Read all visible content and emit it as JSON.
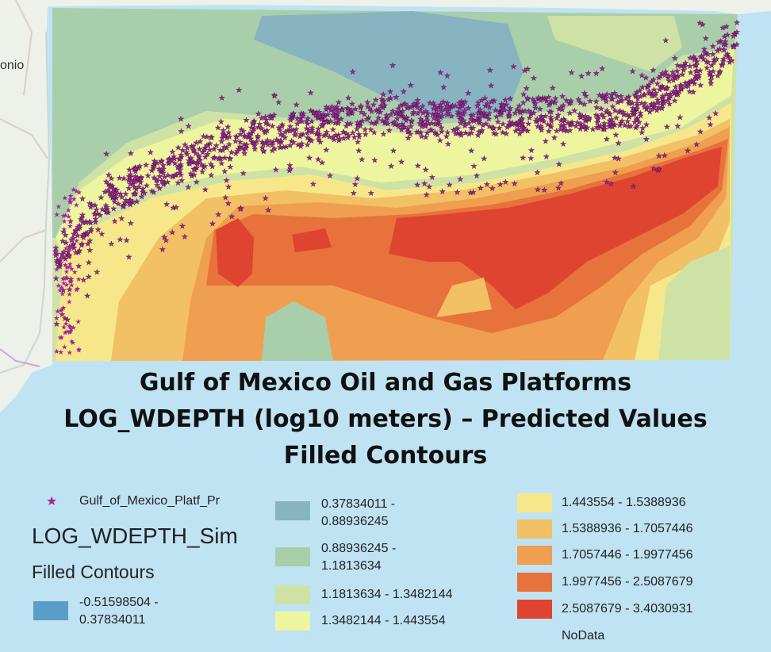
{
  "map": {
    "place_label": "onio",
    "basemap_land_color": "#eef0ea",
    "basemap_water_color": "#bfe3f3",
    "platform_marker_color": "#a0279b"
  },
  "title": {
    "line1": "Gulf of Mexico Oil and Gas Platforms",
    "line2": "LOG_WDEPTH (log10 meters) – Predicted Values",
    "line3": "Filled Contours"
  },
  "legend": {
    "point_layer_label": "Gulf_of_Mexico_Platf_Pr",
    "point_layer_icon": "star-icon",
    "layer_title": "LOG_WDEPTH_Sim",
    "subtitle": "Filled Contours",
    "classes": [
      {
        "line1": "-0.51598504 -",
        "line2": "0.37834011",
        "color": "#5b9dc9"
      },
      {
        "line1": "0.37834011 -",
        "line2": "0.88936245",
        "color": "#88b3c0"
      },
      {
        "line1": "0.88936245 -",
        "line2": "1.1813634",
        "color": "#a8cfaa"
      },
      {
        "line1": "1.1813634 - 1.3482144",
        "line2": "",
        "color": "#cfe2a6"
      },
      {
        "line1": "1.3482144 - 1.443554",
        "line2": "",
        "color": "#eef59f"
      },
      {
        "line1": "1.443554 - 1.5388936",
        "line2": "",
        "color": "#f6e88a"
      },
      {
        "line1": "1.5388936 - 1.7057446",
        "line2": "",
        "color": "#f2c065"
      },
      {
        "line1": "1.7057446 - 1.9977456",
        "line2": "",
        "color": "#ef9f4f"
      },
      {
        "line1": "1.9977456 - 2.5087679",
        "line2": "",
        "color": "#e8723c"
      },
      {
        "line1": "2.5087679 - 3.4030931",
        "line2": "",
        "color": "#df4430"
      }
    ],
    "nodata_label": "NoData"
  }
}
